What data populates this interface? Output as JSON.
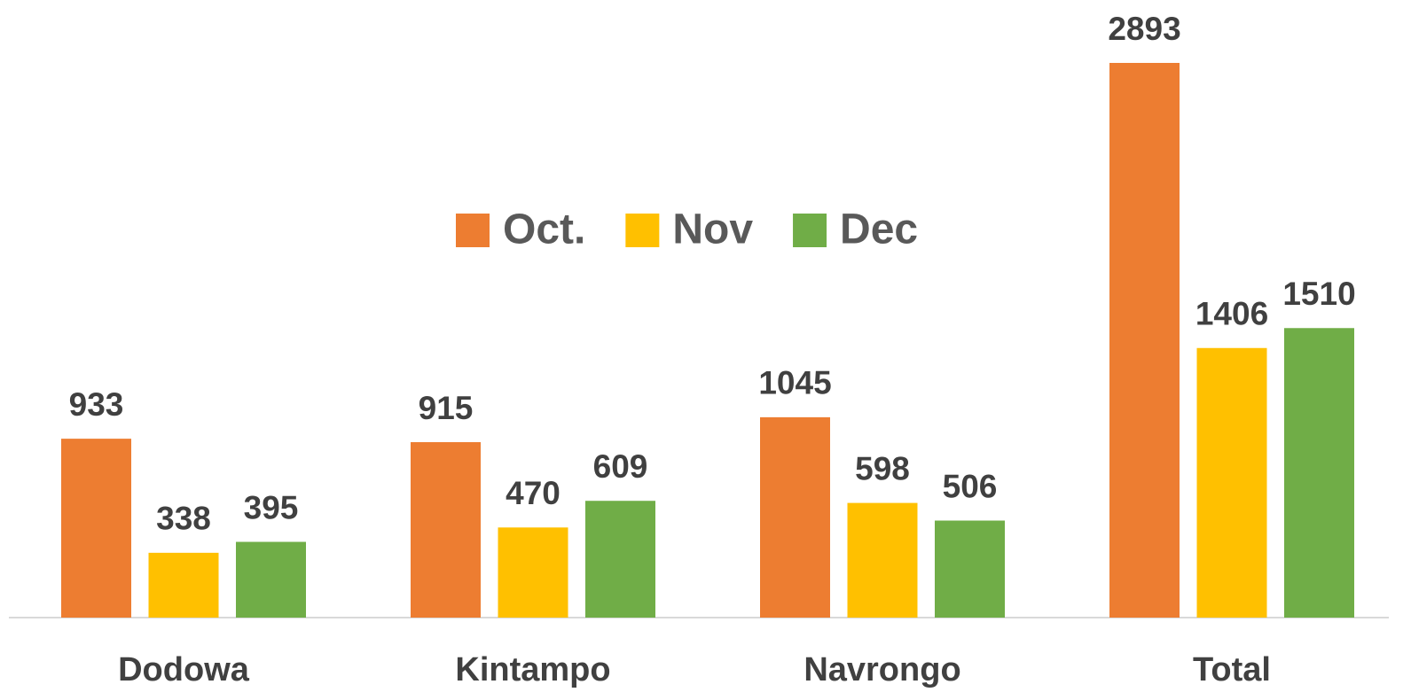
{
  "chart_data": {
    "type": "bar",
    "categories": [
      "Dodowa",
      "Kintampo",
      "Navrongo",
      "Total"
    ],
    "series": [
      {
        "name": "Oct.",
        "color": "#ed7d31",
        "values": [
          933,
          915,
          1045,
          2893
        ]
      },
      {
        "name": "Nov",
        "color": "#ffc000",
        "values": [
          338,
          470,
          598,
          1406
        ]
      },
      {
        "name": "Dec",
        "color": "#70ad47",
        "values": [
          395,
          609,
          506,
          1510
        ]
      }
    ],
    "legend": "top"
  }
}
